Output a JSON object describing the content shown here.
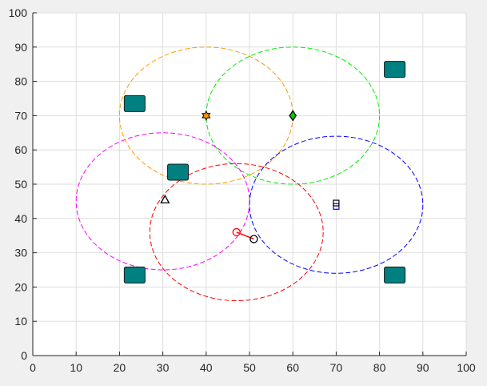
{
  "toolbar": {
    "icons": [
      "brush-icon",
      "save-icon",
      "pan-icon",
      "zoom-in-icon",
      "zoom-out-icon",
      "home-icon"
    ]
  },
  "chart_data": {
    "type": "scatter",
    "title": "",
    "xlabel": "",
    "ylabel": "",
    "xlim": [
      0,
      100
    ],
    "ylim": [
      0,
      100
    ],
    "xticks": [
      0,
      10,
      20,
      30,
      40,
      50,
      60,
      70,
      80,
      90,
      100
    ],
    "yticks": [
      0,
      10,
      20,
      30,
      40,
      50,
      60,
      70,
      80,
      90,
      100
    ],
    "grid": true,
    "squares": [
      {
        "x": 23.5,
        "y": 73.5
      },
      {
        "x": 33.5,
        "y": 53.5
      },
      {
        "x": 83.5,
        "y": 83.5
      },
      {
        "x": 23.5,
        "y": 23.5
      },
      {
        "x": 83.5,
        "y": 23.5
      }
    ],
    "square_color": "#008080",
    "ellipses": [
      {
        "cx": 40,
        "cy": 70,
        "rx": 20,
        "ry": 20,
        "color": "#ff9900"
      },
      {
        "cx": 60,
        "cy": 70,
        "rx": 20,
        "ry": 20,
        "color": "#00ee00"
      },
      {
        "cx": 30,
        "cy": 45,
        "rx": 20,
        "ry": 20,
        "color": "#ff00ff"
      },
      {
        "cx": 47,
        "cy": 36,
        "rx": 20,
        "ry": 20,
        "color": "#ff0000"
      },
      {
        "cx": 70,
        "cy": 44,
        "rx": 20,
        "ry": 20,
        "color": "#0000ff"
      }
    ],
    "markers": [
      {
        "shape": "hexagram",
        "x": 40,
        "y": 70,
        "color": "#ff9900",
        "edge": "#000000"
      },
      {
        "shape": "diamond",
        "x": 60,
        "y": 70,
        "color": "#00cc00",
        "edge": "#000000"
      },
      {
        "shape": "triangle",
        "x": 30.5,
        "y": 45.5,
        "color": "#000000"
      },
      {
        "shape": "circle",
        "x": 47,
        "y": 36,
        "color": "#ff0000"
      },
      {
        "shape": "circle",
        "x": 51,
        "y": 34,
        "color": "#000000"
      },
      {
        "shape": "square-small",
        "x": 70,
        "y": 43.5,
        "color": "#0000ff"
      },
      {
        "shape": "square-small",
        "x": 70,
        "y": 44.5,
        "color": "#000000"
      }
    ],
    "links": [
      {
        "x1": 47,
        "y1": 36,
        "x2": 51,
        "y2": 34,
        "color": "#ff0000"
      }
    ]
  }
}
